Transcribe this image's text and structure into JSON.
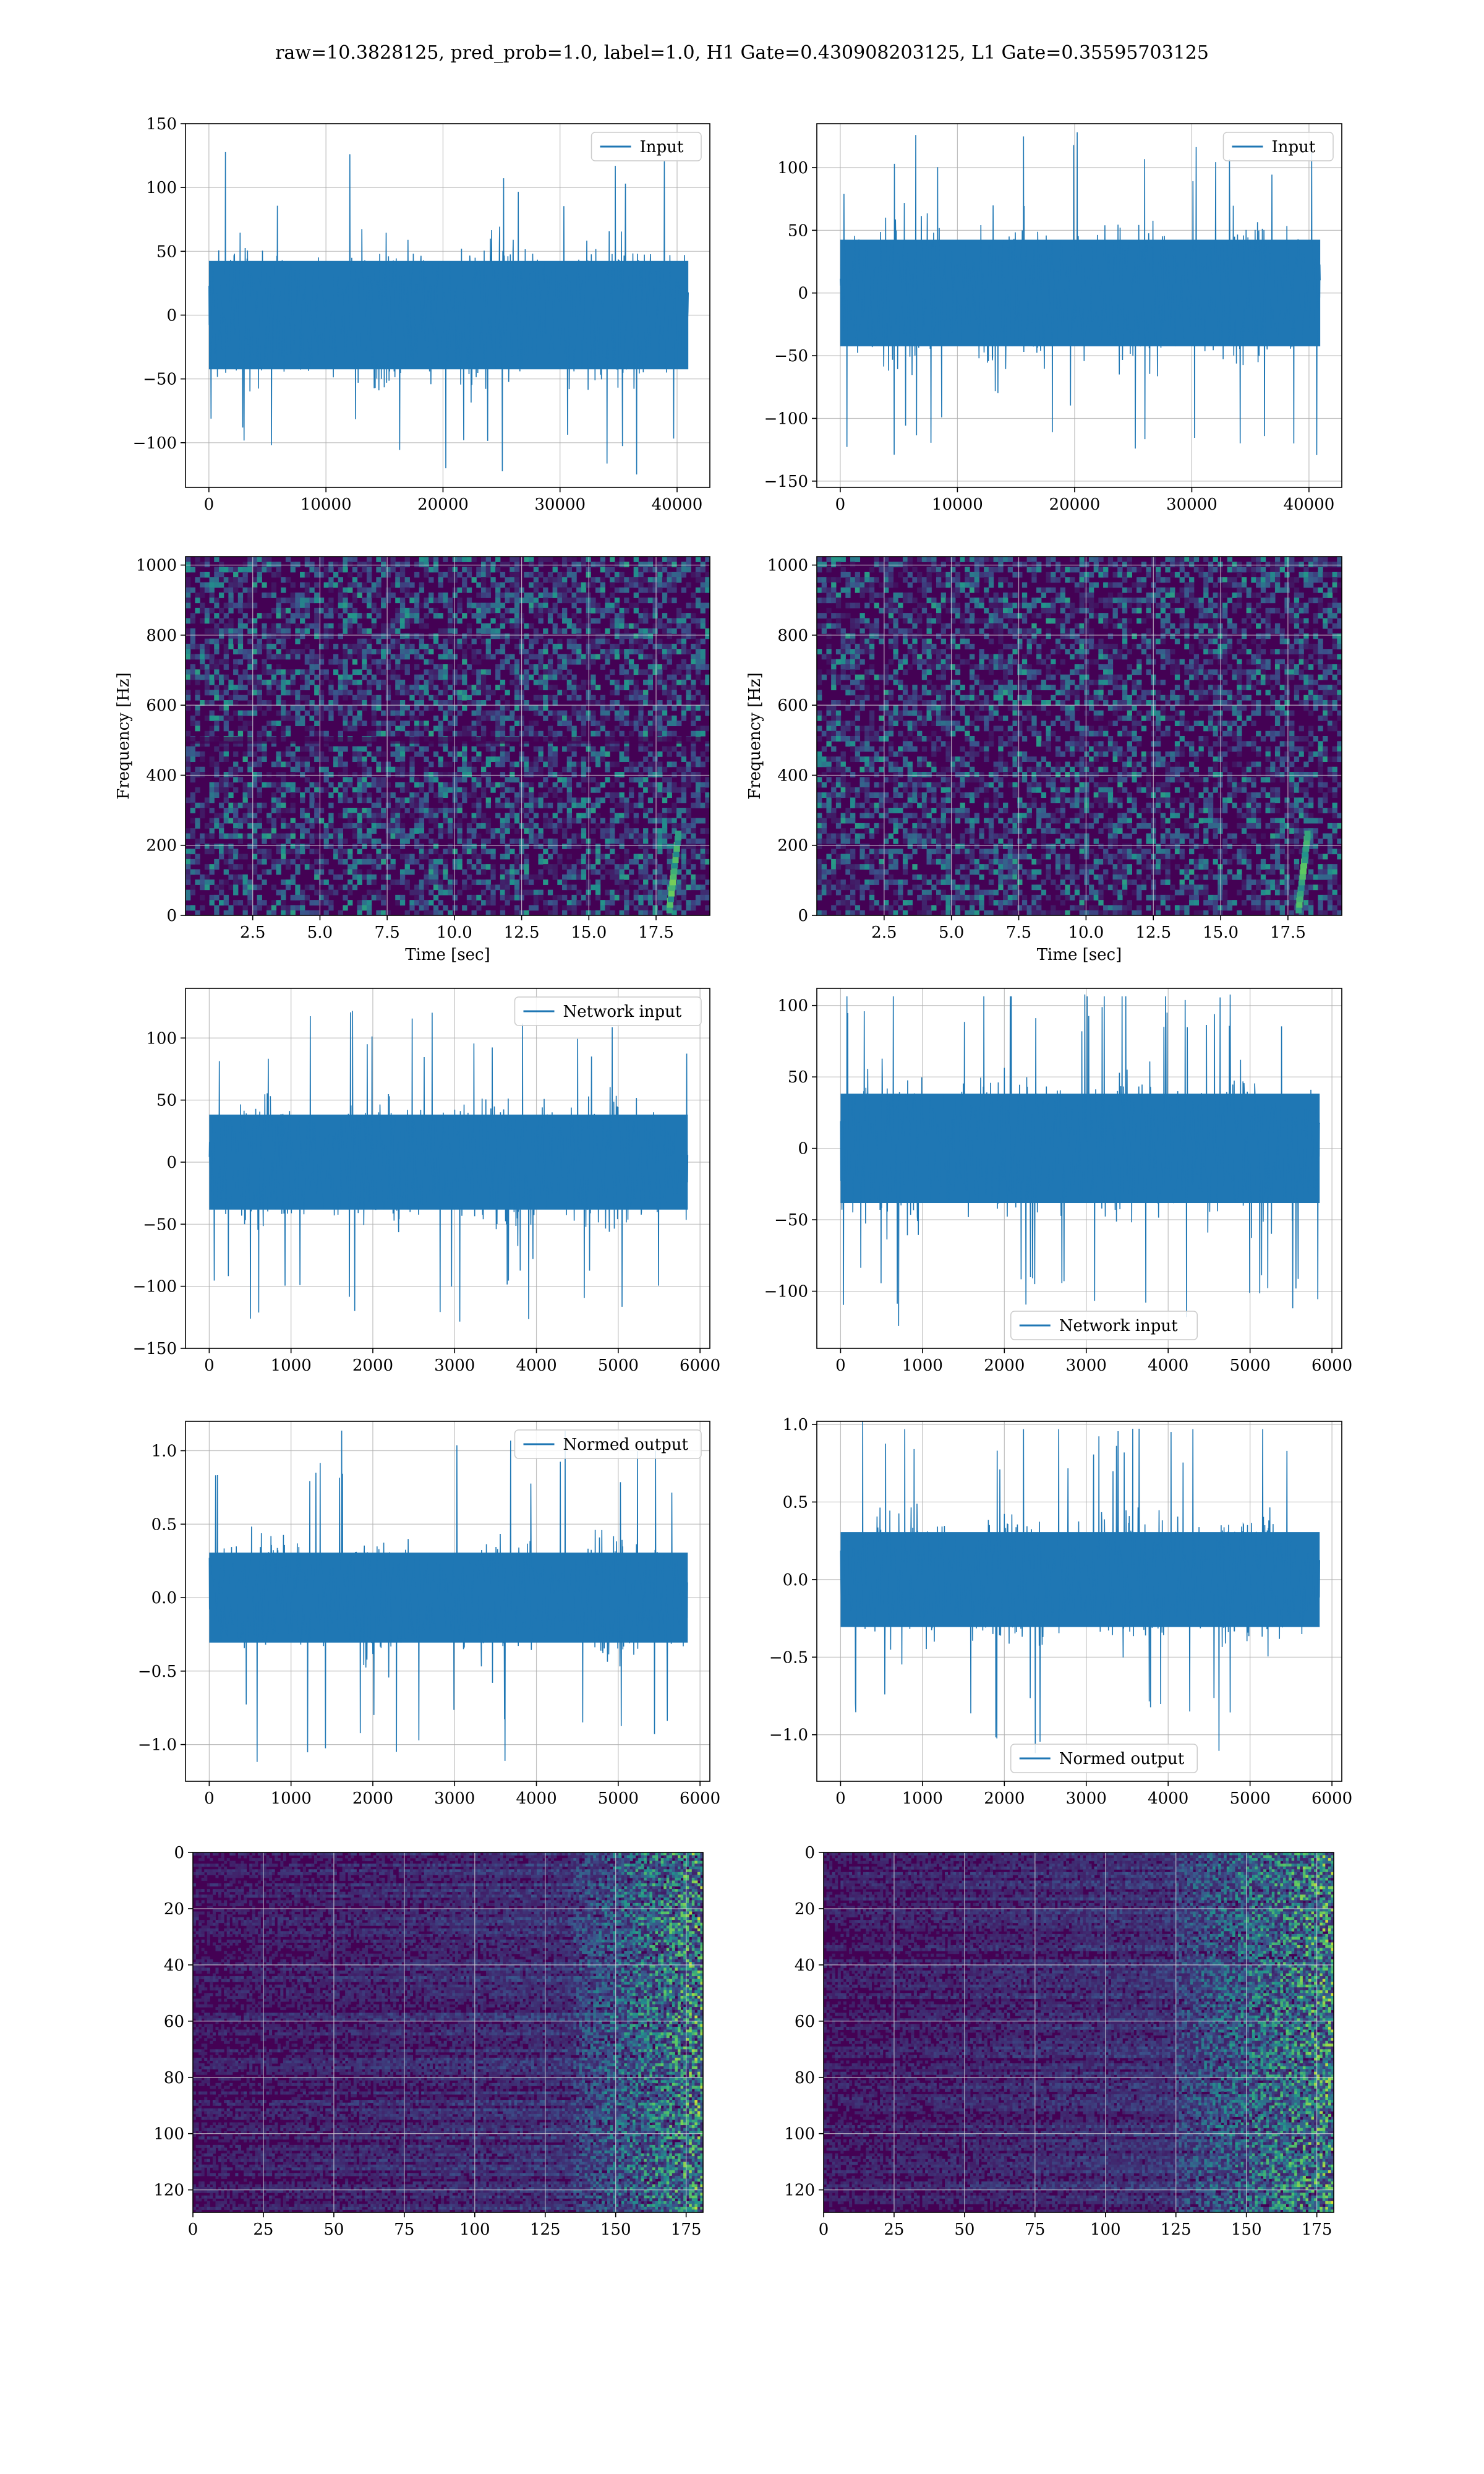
{
  "suptitle": "raw=10.3828125, pred_prob=1.0, label=1.0, H1 Gate=0.430908203125, L1 Gate=0.35595703125",
  "colors": {
    "line": "#1f77b4",
    "grid": "#b0b0b0",
    "viridis_low": "#440154",
    "viridis_mid": "#21918c",
    "viridis_high": "#fde725"
  },
  "chart_data": [
    {
      "id": "h1-input",
      "type": "line",
      "legend": "Input",
      "legend_loc": "top-right",
      "xlim": [
        -2000,
        42800
      ],
      "ylim": [
        -135,
        150
      ],
      "xticks": [
        0,
        10000,
        20000,
        30000,
        40000
      ],
      "yticks": [
        -100,
        -50,
        0,
        50,
        100,
        150
      ],
      "x_range": [
        0,
        40960
      ],
      "envelope": 50,
      "peak": 128,
      "grid": true
    },
    {
      "id": "l1-input",
      "type": "line",
      "legend": "Input",
      "legend_loc": "top-right",
      "xlim": [
        -2000,
        42800
      ],
      "ylim": [
        -155,
        135
      ],
      "xticks": [
        0,
        10000,
        20000,
        30000,
        40000
      ],
      "yticks": [
        -150,
        -100,
        -50,
        0,
        50,
        100
      ],
      "x_range": [
        0,
        40960
      ],
      "envelope": 50,
      "peak": 130,
      "grid": true
    },
    {
      "id": "h1-spectrogram",
      "type": "heatmap",
      "ylabel": "Frequency [Hz]",
      "xlabel": "Time [sec]",
      "xlim": [
        0,
        19.5
      ],
      "ylim": [
        0,
        1024
      ],
      "xticks": [
        2.5,
        5.0,
        7.5,
        10.0,
        12.5,
        15.0,
        17.5
      ],
      "yticks": [
        0,
        200,
        400,
        600,
        800,
        1000
      ],
      "xtick_labels": [
        "2.5",
        "5.0",
        "7.5",
        "10.0",
        "12.5",
        "15.0",
        "17.5"
      ],
      "chirp_time": 18.3,
      "grid": true
    },
    {
      "id": "l1-spectrogram",
      "type": "heatmap",
      "ylabel": "Frequency [Hz]",
      "xlabel": "Time [sec]",
      "xlim": [
        0,
        19.5
      ],
      "ylim": [
        0,
        1024
      ],
      "xticks": [
        2.5,
        5.0,
        7.5,
        10.0,
        12.5,
        15.0,
        17.5
      ],
      "yticks": [
        0,
        200,
        400,
        600,
        800,
        1000
      ],
      "xtick_labels": [
        "2.5",
        "5.0",
        "7.5",
        "10.0",
        "12.5",
        "15.0",
        "17.5"
      ],
      "chirp_time": 18.2,
      "grid": true
    },
    {
      "id": "h1-network-input",
      "type": "line",
      "legend": "Network input",
      "legend_loc": "top-right",
      "xlim": [
        -290,
        6120
      ],
      "ylim": [
        -150,
        140
      ],
      "xticks": [
        0,
        1000,
        2000,
        3000,
        4000,
        5000,
        6000
      ],
      "yticks": [
        -150,
        -100,
        -50,
        0,
        50,
        100
      ],
      "x_range": [
        0,
        5850
      ],
      "envelope": 45,
      "peak": 130,
      "grid": true
    },
    {
      "id": "l1-network-input",
      "type": "line",
      "legend": "Network input",
      "legend_loc": "bottom-center",
      "xlim": [
        -290,
        6120
      ],
      "ylim": [
        -140,
        112
      ],
      "xticks": [
        0,
        1000,
        2000,
        3000,
        4000,
        5000,
        6000
      ],
      "yticks": [
        -100,
        -50,
        0,
        50,
        100
      ],
      "x_range": [
        0,
        5850
      ],
      "envelope": 45,
      "peak": 128,
      "grid": true
    },
    {
      "id": "h1-normed-output",
      "type": "line",
      "legend": "Normed output",
      "legend_loc": "top-right",
      "xlim": [
        -290,
        6120
      ],
      "ylim": [
        -1.25,
        1.2
      ],
      "xticks": [
        0,
        1000,
        2000,
        3000,
        4000,
        5000,
        6000
      ],
      "yticks": [
        -1.0,
        -0.5,
        0.0,
        0.5,
        1.0
      ],
      "ytick_labels": [
        "−1.0",
        "−0.5",
        "0.0",
        "0.5",
        "1.0"
      ],
      "x_range": [
        0,
        5850
      ],
      "envelope": 0.36,
      "peak": 1.15,
      "grid": true
    },
    {
      "id": "l1-normed-output",
      "type": "line",
      "legend": "Normed output",
      "legend_loc": "bottom-center",
      "xlim": [
        -290,
        6120
      ],
      "ylim": [
        -1.3,
        1.02
      ],
      "xticks": [
        0,
        1000,
        2000,
        3000,
        4000,
        5000,
        6000
      ],
      "yticks": [
        -1.0,
        -0.5,
        0.0,
        0.5,
        1.0
      ],
      "ytick_labels": [
        "−1.0",
        "−0.5",
        "0.0",
        "0.5",
        "1.0"
      ],
      "x_range": [
        0,
        5850
      ],
      "envelope": 0.36,
      "peak": 1.13,
      "grid": true
    },
    {
      "id": "h1-feature-map",
      "type": "heatmap",
      "xlim": [
        0,
        181
      ],
      "ylim": [
        128,
        0
      ],
      "xticks": [
        0,
        25,
        50,
        75,
        100,
        125,
        150,
        175
      ],
      "yticks": [
        0,
        20,
        40,
        60,
        80,
        100,
        120
      ],
      "active_from": 135,
      "grid": true
    },
    {
      "id": "l1-feature-map",
      "type": "heatmap",
      "xlim": [
        0,
        181
      ],
      "ylim": [
        128,
        0
      ],
      "xticks": [
        0,
        25,
        50,
        75,
        100,
        125,
        150,
        175
      ],
      "yticks": [
        0,
        20,
        40,
        60,
        80,
        100,
        120
      ],
      "active_from": 125,
      "grid": true
    }
  ]
}
